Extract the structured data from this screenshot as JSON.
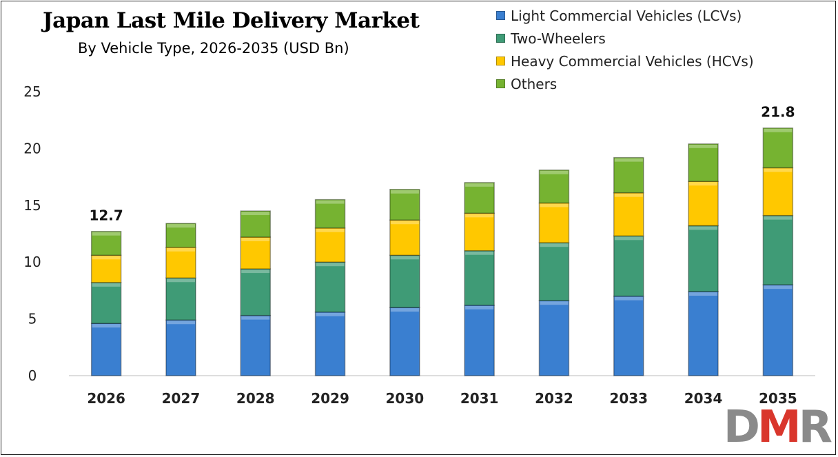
{
  "chart_data": {
    "type": "bar",
    "stacked": true,
    "title": "Japan Last Mile Delivery Market",
    "subtitle": "By Vehicle Type, 2026-2035 (USD Bn)",
    "categories": [
      "2026",
      "2027",
      "2028",
      "2029",
      "2030",
      "2031",
      "2032",
      "2033",
      "2034",
      "2035"
    ],
    "series": [
      {
        "name": "Light Commercial Vehicles (LCVs)",
        "color": "#3a7fd0",
        "values": [
          4.6,
          4.9,
          5.3,
          5.6,
          6.0,
          6.2,
          6.6,
          7.0,
          7.4,
          8.0
        ]
      },
      {
        "name": "Two-Wheelers",
        "color": "#3f9b76",
        "values": [
          3.6,
          3.7,
          4.1,
          4.4,
          4.6,
          4.8,
          5.1,
          5.3,
          5.8,
          6.1
        ]
      },
      {
        "name": "Heavy Commercial Vehicles (HCVs)",
        "color": "#ffc800",
        "values": [
          2.4,
          2.7,
          2.8,
          3.0,
          3.1,
          3.3,
          3.5,
          3.8,
          3.9,
          4.2
        ]
      },
      {
        "name": "Others",
        "color": "#76b331",
        "values": [
          2.1,
          2.1,
          2.3,
          2.5,
          2.7,
          2.7,
          2.9,
          3.1,
          3.3,
          3.5
        ]
      }
    ],
    "data_labels": [
      {
        "category": "2026",
        "text": "12.7"
      },
      {
        "category": "2035",
        "text": "21.8"
      }
    ],
    "yticks": [
      "0",
      "5",
      "10",
      "15",
      "20",
      "25"
    ],
    "ylim": [
      0,
      25
    ],
    "grid": false,
    "legend_position": "top-right"
  },
  "logo_text": "DMR"
}
